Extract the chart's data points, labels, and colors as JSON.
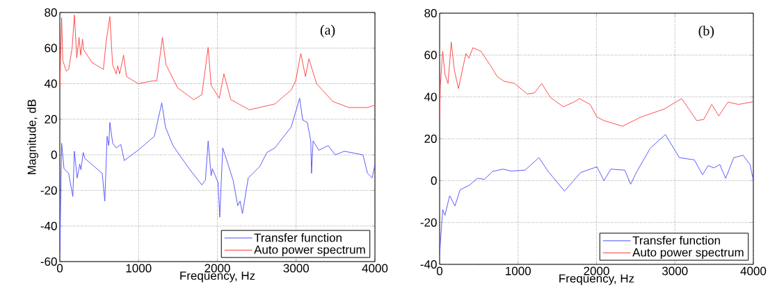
{
  "chart_data": [
    {
      "type": "line",
      "xlabel": "Frequency, Hz",
      "ylabel": "Magnitude, dB",
      "annotations": [
        "(a)"
      ],
      "xlim": [
        0,
        4000
      ],
      "ylim": [
        -60,
        80
      ],
      "xticks": [
        0,
        1000,
        2000,
        3000,
        4000
      ],
      "yticks": [
        -60,
        -40,
        -20,
        0,
        20,
        40,
        60,
        80
      ],
      "grid": true,
      "legend": "bottom right",
      "line_style": "solid",
      "series": [
        {
          "name": "Transfer function",
          "color": "#4a4aff",
          "x": [
            0,
            23,
            53,
            112,
            165,
            185,
            220,
            253,
            268,
            297,
            318,
            435,
            538,
            571,
            600,
            621,
            635,
            671,
            715,
            774,
            818,
            994,
            1200,
            1294,
            1341,
            1436,
            1642,
            1803,
            1848,
            1883,
            1921,
            1936,
            2009,
            2030,
            2068,
            2200,
            2259,
            2288,
            2318,
            2392,
            2539,
            2628,
            2730,
            2936,
            3045,
            3083,
            3142,
            3186,
            3195,
            3215,
            3289,
            3406,
            3495,
            3612,
            3848,
            3906,
            3965,
            4000
          ],
          "values": [
            -55,
            6.5,
            -7.8,
            -10.4,
            -23.4,
            2,
            -13,
            -5.2,
            -8.4,
            1.3,
            -2,
            -6.5,
            -10.4,
            -26,
            10.4,
            5.2,
            18.2,
            6.5,
            3.9,
            5.8,
            -3.2,
            2.6,
            10.4,
            29.2,
            15.6,
            5.2,
            -7.8,
            -16.9,
            -14.3,
            7.8,
            -11.7,
            -7.8,
            -15.6,
            -35,
            3.9,
            -14.3,
            -28.6,
            -26,
            -33,
            -13,
            -6.5,
            1.3,
            3.9,
            15.6,
            31.8,
            19.5,
            18.2,
            7.8,
            -10.4,
            7.8,
            2.6,
            5.2,
            0,
            2,
            0,
            -10.4,
            -13,
            -5.2
          ]
        },
        {
          "name": "Auto power spectrum",
          "color": "#ff3a3a",
          "x": [
            0,
            23,
            38,
            82,
            112,
            156,
            185,
            215,
            244,
            265,
            288,
            303,
            406,
            553,
            588,
            635,
            670,
            715,
            735,
            759,
            809,
            847,
            994,
            1171,
            1230,
            1303,
            1347,
            1495,
            1700,
            1803,
            1883,
            1921,
            2024,
            2083,
            2171,
            2406,
            2730,
            2936,
            2994,
            3059,
            3118,
            3162,
            3259,
            3465,
            3671,
            3906,
            4000
          ],
          "values": [
            37.7,
            77,
            53,
            47,
            48,
            60,
            78.6,
            54.5,
            66,
            56,
            65,
            59,
            52,
            48,
            63.6,
            77.7,
            50.6,
            45.5,
            50,
            45.5,
            56,
            44,
            40,
            41.5,
            41.5,
            66,
            50.6,
            37.7,
            31,
            33.8,
            60.4,
            39,
            31.8,
            45.5,
            31,
            25.3,
            28.6,
            36.4,
            41.6,
            57,
            44,
            54,
            40,
            30,
            26.6,
            26.6,
            27.9
          ]
        }
      ]
    },
    {
      "type": "line",
      "xlabel": "Frequency, Hz",
      "annotations": [
        "(b)"
      ],
      "xlim": [
        0,
        4000
      ],
      "ylim": [
        -40,
        80
      ],
      "xticks": [
        0,
        1000,
        2000,
        3000,
        4000
      ],
      "yticks": [
        -40,
        -20,
        0,
        20,
        40,
        60,
        80
      ],
      "grid": true,
      "legend": "bottom right",
      "line_style": "solid",
      "series": [
        {
          "name": "Transfer function",
          "color": "#4a4aff",
          "x": [
            0,
            39,
            68,
            128,
            195,
            261,
            379,
            482,
            571,
            675,
            808,
            911,
            1089,
            1266,
            1384,
            1592,
            1799,
            2006,
            2095,
            2183,
            2361,
            2435,
            2509,
            2686,
            2879,
            3056,
            3248,
            3351,
            3425,
            3499,
            3573,
            3647,
            3751,
            3869,
            3958,
            4000
          ],
          "values": [
            -35,
            -13.8,
            -16.6,
            -7.2,
            -12.1,
            -4.4,
            -2.2,
            1.1,
            0.6,
            4.4,
            5.5,
            4.6,
            5,
            11,
            4.4,
            -5,
            3.9,
            6.6,
            0,
            5.5,
            5,
            -1.7,
            3.9,
            15.5,
            22,
            11,
            9.9,
            2.8,
            7.2,
            6.1,
            7.7,
            1.1,
            11,
            12.1,
            7.7,
            0
          ]
        },
        {
          "name": "Auto power spectrum",
          "color": "#ff3a3a",
          "x": [
            0,
            9,
            39,
            68,
            107,
            148,
            187,
            240,
            335,
            373,
            424,
            527,
            645,
            734,
            822,
            955,
            1118,
            1207,
            1302,
            1414,
            1577,
            1710,
            1784,
            1918,
            2006,
            2095,
            2332,
            2568,
            2864,
            3086,
            3278,
            3367,
            3470,
            3559,
            3677,
            3810,
            4000
          ],
          "values": [
            29.8,
            45,
            61.8,
            50.8,
            46.4,
            66.2,
            53,
            44,
            60.7,
            58.5,
            63.5,
            61.8,
            55.2,
            49.7,
            47.5,
            46.4,
            41.4,
            41.9,
            46.4,
            39.7,
            35.3,
            37.5,
            39.2,
            36.4,
            30.4,
            28.7,
            26,
            30.4,
            34.2,
            39.2,
            28.7,
            29.2,
            36.4,
            30.9,
            37.5,
            36.4,
            37.7
          ]
        }
      ]
    }
  ]
}
